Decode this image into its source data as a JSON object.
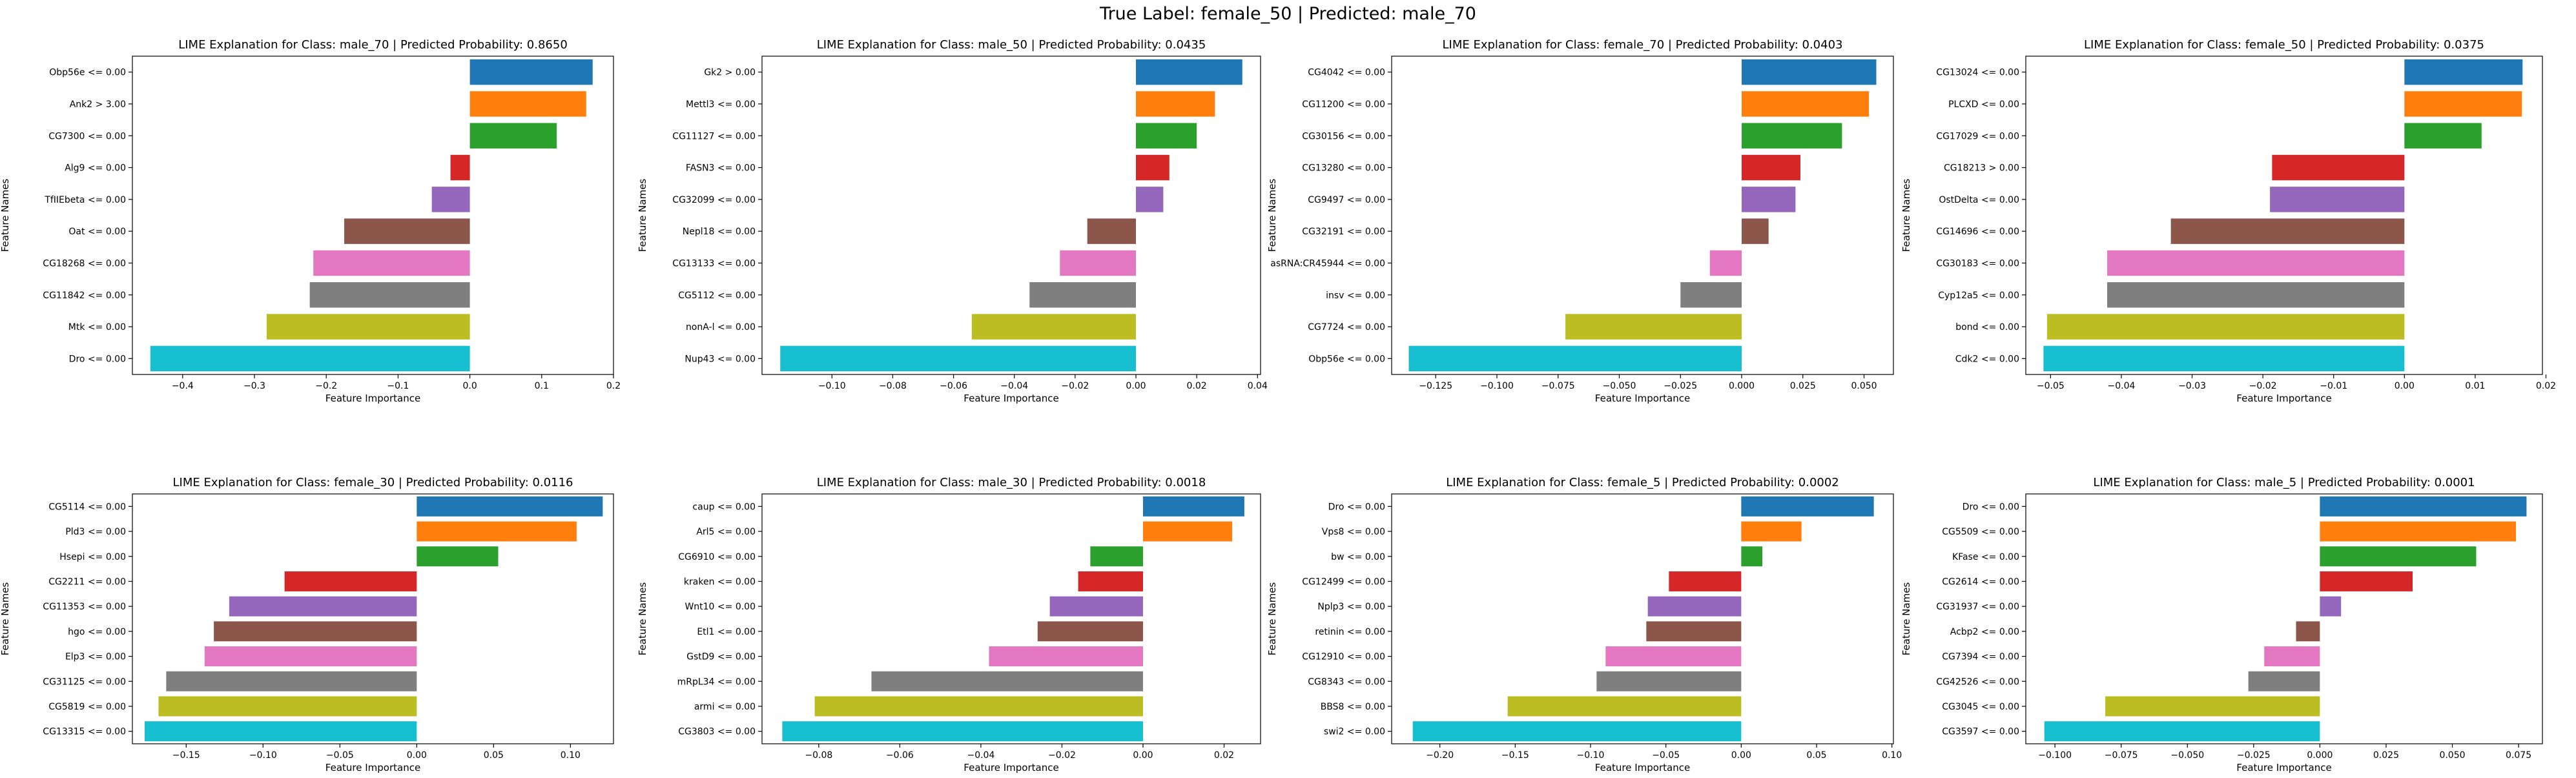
{
  "suptitle": "True Label: female_50 | Predicted: male_70",
  "colors": [
    "#1f77b4",
    "#ff7f0e",
    "#2ca02c",
    "#d62728",
    "#9467bd",
    "#8c564b",
    "#e377c2",
    "#7f7f7f",
    "#bcbd22",
    "#17becf"
  ],
  "chart_data": [
    {
      "type": "bar",
      "title": "LIME Explanation for Class: male_70 | Predicted Probability: 0.8650",
      "xlabel": "Feature Importance",
      "ylabel": "Feature Names",
      "categories": [
        "Obp56e <= 0.00",
        "Ank2 > 3.00",
        "CG7300 <= 0.00",
        "Alg9 <= 0.00",
        "TfIIEbeta <= 0.00",
        "Oat <= 0.00",
        "CG18268 <= 0.00",
        "CG11842 <= 0.00",
        "Mtk <= 0.00",
        "Dro <= 0.00"
      ],
      "values": [
        0.171,
        0.162,
        0.121,
        -0.027,
        -0.053,
        -0.175,
        -0.218,
        -0.223,
        -0.283,
        -0.445
      ],
      "xlim": [
        -0.47,
        0.2
      ],
      "xticks": [
        -0.4,
        -0.3,
        -0.2,
        -0.1,
        0.0,
        0.1,
        0.2
      ],
      "xtick_labels": [
        "−0.4",
        "−0.3",
        "−0.2",
        "−0.1",
        "0.0",
        "0.1",
        "0.2"
      ]
    },
    {
      "type": "bar",
      "title": "LIME Explanation for Class: male_50 | Predicted Probability: 0.0435",
      "xlabel": "Feature Importance",
      "ylabel": "Feature Names",
      "categories": [
        "Gk2 > 0.00",
        "Mettl3 <= 0.00",
        "CG11127 <= 0.00",
        "FASN3 <= 0.00",
        "CG32099 <= 0.00",
        "Nepl18 <= 0.00",
        "CG13133 <= 0.00",
        "CG5112 <= 0.00",
        "nonA-l <= 0.00",
        "Nup43 <= 0.00"
      ],
      "values": [
        0.035,
        0.026,
        0.02,
        0.011,
        0.009,
        -0.016,
        -0.025,
        -0.035,
        -0.054,
        -0.117
      ],
      "xlim": [
        -0.123,
        0.041
      ],
      "xticks": [
        -0.1,
        -0.08,
        -0.06,
        -0.04,
        -0.02,
        0.0,
        0.02,
        0.04
      ],
      "xtick_labels": [
        "−0.10",
        "−0.08",
        "−0.06",
        "−0.04",
        "−0.02",
        "0.00",
        "0.02",
        "0.04"
      ]
    },
    {
      "type": "bar",
      "title": "LIME Explanation for Class: female_70 | Predicted Probability: 0.0403",
      "xlabel": "Feature Importance",
      "ylabel": "Feature Names",
      "categories": [
        "CG4042 <= 0.00",
        "CG11200 <= 0.00",
        "CG30156 <= 0.00",
        "CG13280 <= 0.00",
        "CG9497 <= 0.00",
        "CG32191 <= 0.00",
        "asRNA:CR45944 <= 0.00",
        "insv <= 0.00",
        "CG7724 <= 0.00",
        "Obp56e <= 0.00"
      ],
      "values": [
        0.055,
        0.052,
        0.041,
        0.024,
        0.022,
        0.011,
        -0.013,
        -0.025,
        -0.072,
        -0.136
      ],
      "xlim": [
        -0.143,
        0.062
      ],
      "xticks": [
        -0.125,
        -0.1,
        -0.075,
        -0.05,
        -0.025,
        0.0,
        0.025,
        0.05
      ],
      "xtick_labels": [
        "−0.125",
        "−0.100",
        "−0.075",
        "−0.050",
        "−0.025",
        "0.000",
        "0.025",
        "0.050"
      ]
    },
    {
      "type": "bar",
      "title": "LIME Explanation for Class: female_50 | Predicted Probability: 0.0375",
      "xlabel": "Feature Importance",
      "ylabel": "Feature Names",
      "categories": [
        "CG13024 <= 0.00",
        "PLCXD <= 0.00",
        "CG17029 <= 0.00",
        "CG18213 > 0.00",
        "OstDelta <= 0.00",
        "CG14696 <= 0.00",
        "CG30183 <= 0.00",
        "Cyp12a5 <= 0.00",
        "bond <= 0.00",
        "Cdk2 <= 0.00"
      ],
      "values": [
        0.0167,
        0.0166,
        0.0109,
        -0.0187,
        -0.019,
        -0.033,
        -0.042,
        -0.042,
        -0.0505,
        -0.051
      ],
      "xlim": [
        -0.0535,
        0.0195
      ],
      "xticks": [
        -0.05,
        -0.04,
        -0.03,
        -0.02,
        -0.01,
        0.0,
        0.01,
        0.02
      ],
      "xtick_labels": [
        "−0.05",
        "−0.04",
        "−0.03",
        "−0.02",
        "−0.01",
        "0.00",
        "0.01",
        "0.02"
      ]
    },
    {
      "type": "bar",
      "title": "LIME Explanation for Class: female_30 | Predicted Probability: 0.0116",
      "xlabel": "Feature Importance",
      "ylabel": "Feature Names",
      "categories": [
        "CG5114 <= 0.00",
        "Pld3 <= 0.00",
        "Hsepi <= 0.00",
        "CG2211 <= 0.00",
        "CG11353 <= 0.00",
        "hgo <= 0.00",
        "Elp3 <= 0.00",
        "CG31125 <= 0.00",
        "CG5819 <= 0.00",
        "CG13315 <= 0.00"
      ],
      "values": [
        0.121,
        0.104,
        0.053,
        -0.086,
        -0.122,
        -0.132,
        -0.138,
        -0.163,
        -0.168,
        -0.177
      ],
      "xlim": [
        -0.185,
        0.128
      ],
      "xticks": [
        -0.15,
        -0.1,
        -0.05,
        0.0,
        0.05,
        0.1
      ],
      "xtick_labels": [
        "−0.15",
        "−0.10",
        "−0.05",
        "0.00",
        "0.05",
        "0.10"
      ]
    },
    {
      "type": "bar",
      "title": "LIME Explanation for Class: male_30 | Predicted Probability: 0.0018",
      "xlabel": "Feature Importance",
      "ylabel": "Feature Names",
      "categories": [
        "caup <= 0.00",
        "Arl5 <= 0.00",
        "CG6910 <= 0.00",
        "kraken <= 0.00",
        "Wnt10 <= 0.00",
        "Etl1 <= 0.00",
        "GstD9 <= 0.00",
        "mRpL34 <= 0.00",
        "armi <= 0.00",
        "CG3803 <= 0.00"
      ],
      "values": [
        0.025,
        0.022,
        -0.013,
        -0.016,
        -0.023,
        -0.026,
        -0.038,
        -0.067,
        -0.081,
        -0.089
      ],
      "xlim": [
        -0.094,
        0.029
      ],
      "xticks": [
        -0.08,
        -0.06,
        -0.04,
        -0.02,
        0.0,
        0.02
      ],
      "xtick_labels": [
        "−0.08",
        "−0.06",
        "−0.04",
        "−0.02",
        "0.00",
        "0.02"
      ]
    },
    {
      "type": "bar",
      "title": "LIME Explanation for Class: female_5 | Predicted Probability: 0.0002",
      "xlabel": "Feature Importance",
      "ylabel": "Feature Names",
      "categories": [
        "Dro <= 0.00",
        "Vps8 <= 0.00",
        "bw <= 0.00",
        "CG12499 <= 0.00",
        "Nplp3 <= 0.00",
        "retinin <= 0.00",
        "CG12910 <= 0.00",
        "CG8343 <= 0.00",
        "BBS8 <= 0.00",
        "swi2 <= 0.00"
      ],
      "values": [
        0.088,
        0.04,
        0.014,
        -0.048,
        -0.062,
        -0.063,
        -0.09,
        -0.096,
        -0.155,
        -0.218
      ],
      "xlim": [
        -0.232,
        0.101
      ],
      "xticks": [
        -0.2,
        -0.15,
        -0.1,
        -0.05,
        0.0,
        0.05,
        0.1
      ],
      "xtick_labels": [
        "−0.20",
        "−0.15",
        "−0.10",
        "−0.05",
        "0.00",
        "0.05",
        "0.10"
      ]
    },
    {
      "type": "bar",
      "title": "LIME Explanation for Class: male_5 | Predicted Probability: 0.0001",
      "xlabel": "Feature Importance",
      "ylabel": "Feature Names",
      "categories": [
        "Dro <= 0.00",
        "CG5509 <= 0.00",
        "KFase <= 0.00",
        "CG2614 <= 0.00",
        "CG31937 <= 0.00",
        "Acbp2 <= 0.00",
        "CG7394 <= 0.00",
        "CG42526 <= 0.00",
        "CG3045 <= 0.00",
        "CG3597 <= 0.00"
      ],
      "values": [
        0.078,
        0.074,
        0.059,
        0.035,
        0.008,
        -0.009,
        -0.021,
        -0.027,
        -0.081,
        -0.104
      ],
      "xlim": [
        -0.111,
        0.084
      ],
      "xticks": [
        -0.1,
        -0.075,
        -0.05,
        -0.025,
        0.0,
        0.025,
        0.05,
        0.075
      ],
      "xtick_labels": [
        "−0.100",
        "−0.075",
        "−0.050",
        "−0.025",
        "0.000",
        "0.025",
        "0.050",
        "0.075"
      ]
    }
  ]
}
